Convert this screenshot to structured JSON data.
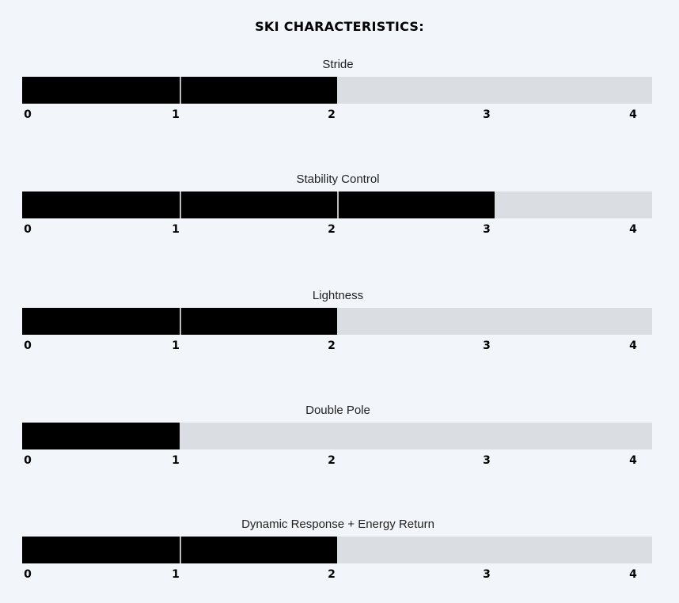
{
  "chart_data": {
    "type": "bar",
    "title": "SKI CHARACTERISTICS:",
    "orientation": "horizontal",
    "xlim": [
      0,
      4
    ],
    "tick_labels": [
      "0",
      "1",
      "2",
      "3",
      "4"
    ],
    "colors": {
      "fill": "#000000",
      "track": "#dadde2",
      "background": "#f2f5fa",
      "divider": "#bbbbbb"
    },
    "categories": [
      "Stride",
      "Stability Control",
      "Lightness",
      "Double Pole",
      "Dynamic Response + Energy Return"
    ],
    "values": [
      2,
      3,
      2,
      1,
      2
    ]
  }
}
